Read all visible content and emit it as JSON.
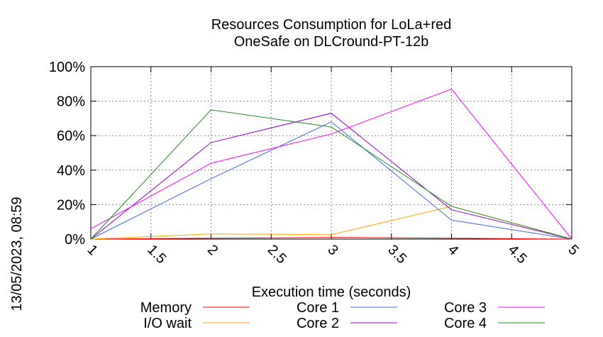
{
  "chart_data": {
    "type": "line",
    "title": "Resources Consumption for LoLa+red",
    "subtitle": "OneSafe on DLCround-PT-12b",
    "xlabel": "Execution time (seconds)",
    "ylabel": "",
    "timestamp": "13/05/2023, 08:59",
    "xlim": [
      1,
      5
    ],
    "ylim": [
      0,
      100
    ],
    "x_ticks": [
      "1",
      "1.5",
      "2",
      "2.5",
      "3",
      "3.5",
      "4",
      "4.5",
      "5"
    ],
    "y_ticks": [
      "0%",
      "20%",
      "40%",
      "60%",
      "80%",
      "100%"
    ],
    "grid": true,
    "legend_position": "bottom",
    "series": [
      {
        "name": "Memory",
        "color": "#ff0000",
        "x": [
          1,
          2,
          3,
          4,
          5
        ],
        "y": [
          0,
          0.5,
          1,
          0.5,
          0
        ]
      },
      {
        "name": "I/O wait",
        "color": "#ffa500",
        "x": [
          1,
          2,
          3,
          4,
          5
        ],
        "y": [
          0,
          3,
          2.5,
          19,
          0
        ]
      },
      {
        "name": "Core 1",
        "color": "#4169e1",
        "x": [
          1,
          2,
          3,
          4,
          5
        ],
        "y": [
          0,
          35,
          68,
          11,
          0
        ]
      },
      {
        "name": "Core 2",
        "color": "#9400d3",
        "x": [
          1,
          2,
          3,
          4,
          5
        ],
        "y": [
          0,
          56,
          73,
          17,
          0
        ]
      },
      {
        "name": "Core 3",
        "color": "#ff00ff",
        "x": [
          1,
          2,
          3,
          4,
          5
        ],
        "y": [
          6,
          44,
          61,
          87,
          0
        ]
      },
      {
        "name": "Core 4",
        "color": "#228b22",
        "x": [
          1,
          2,
          3,
          4,
          5
        ],
        "y": [
          0,
          75,
          65,
          19,
          0
        ]
      }
    ]
  }
}
